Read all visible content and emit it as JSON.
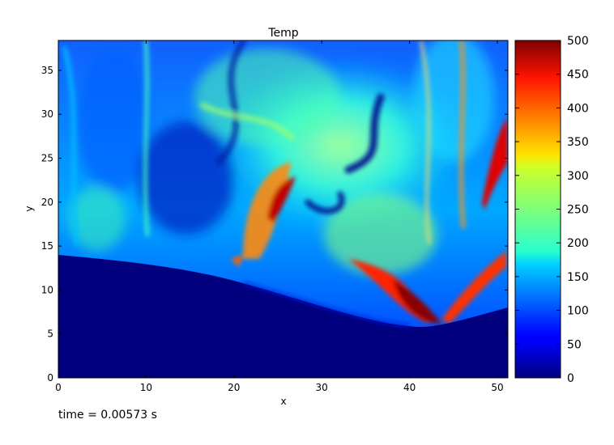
{
  "chart_data": {
    "type": "heatmap",
    "title": "Temp",
    "xlabel": "x",
    "ylabel": "y",
    "xlim": [
      0,
      51.2
    ],
    "ylim": [
      0,
      38.4
    ],
    "xticks": [
      "0",
      "10",
      "20",
      "30",
      "40",
      "50"
    ],
    "yticks": [
      "0",
      "5",
      "10",
      "15",
      "20",
      "25",
      "30",
      "35"
    ],
    "colorbar": {
      "range": [
        0,
        500
      ],
      "ticks": [
        "0",
        "50",
        "100",
        "150",
        "200",
        "250",
        "300",
        "350",
        "400",
        "450",
        "500"
      ],
      "colormap": "jet"
    },
    "annotation": "time = 0.00573 s"
  }
}
